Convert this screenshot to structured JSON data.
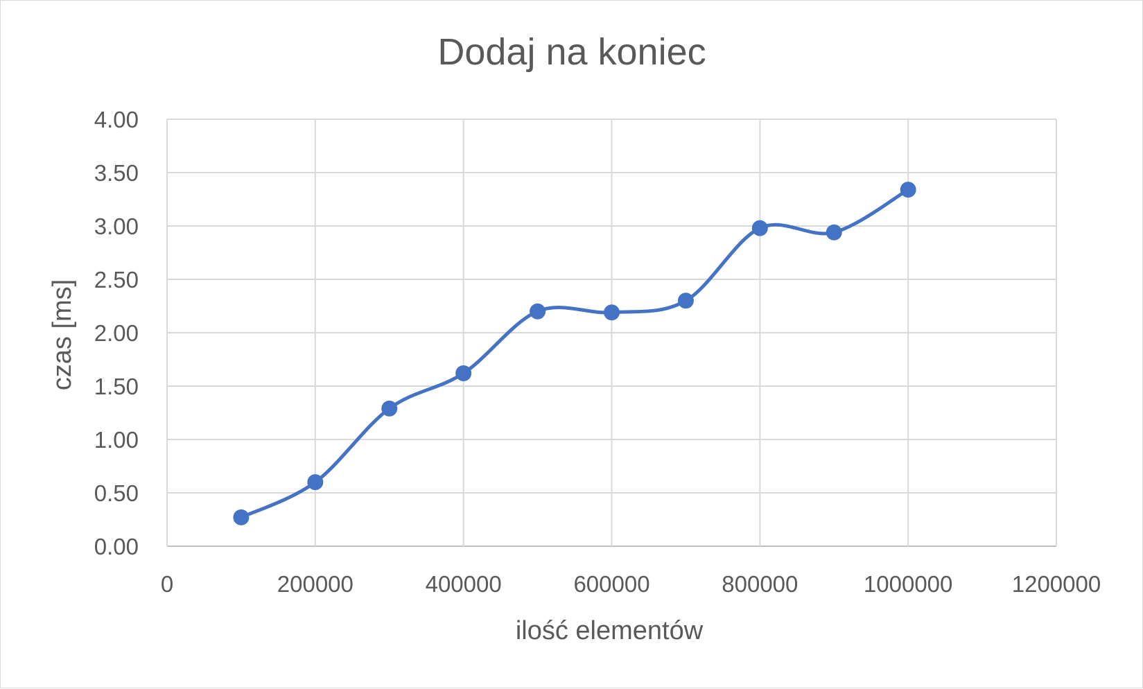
{
  "chart_data": {
    "type": "scatter",
    "title": "Dodaj na koniec",
    "xlabel": "ilość elementów",
    "ylabel": "czas [ms]",
    "xlim": [
      0,
      1200000
    ],
    "ylim": [
      0,
      4
    ],
    "x_ticks": [
      0,
      200000,
      400000,
      600000,
      800000,
      1000000,
      1200000
    ],
    "y_ticks": [
      0,
      0.5,
      1,
      1.5,
      2,
      2.5,
      3,
      3.5,
      4
    ],
    "grid": true,
    "legend": "none",
    "smooth_lines": true,
    "markers": true,
    "series": [
      {
        "x": [
          100000,
          200000,
          300000,
          400000,
          500000,
          600000,
          700000,
          800000,
          900000,
          1000000
        ],
        "y": [
          0.27,
          0.6,
          1.29,
          1.62,
          2.2,
          2.19,
          2.3,
          2.98,
          2.94,
          3.34
        ],
        "color": "#4472c4"
      }
    ]
  }
}
